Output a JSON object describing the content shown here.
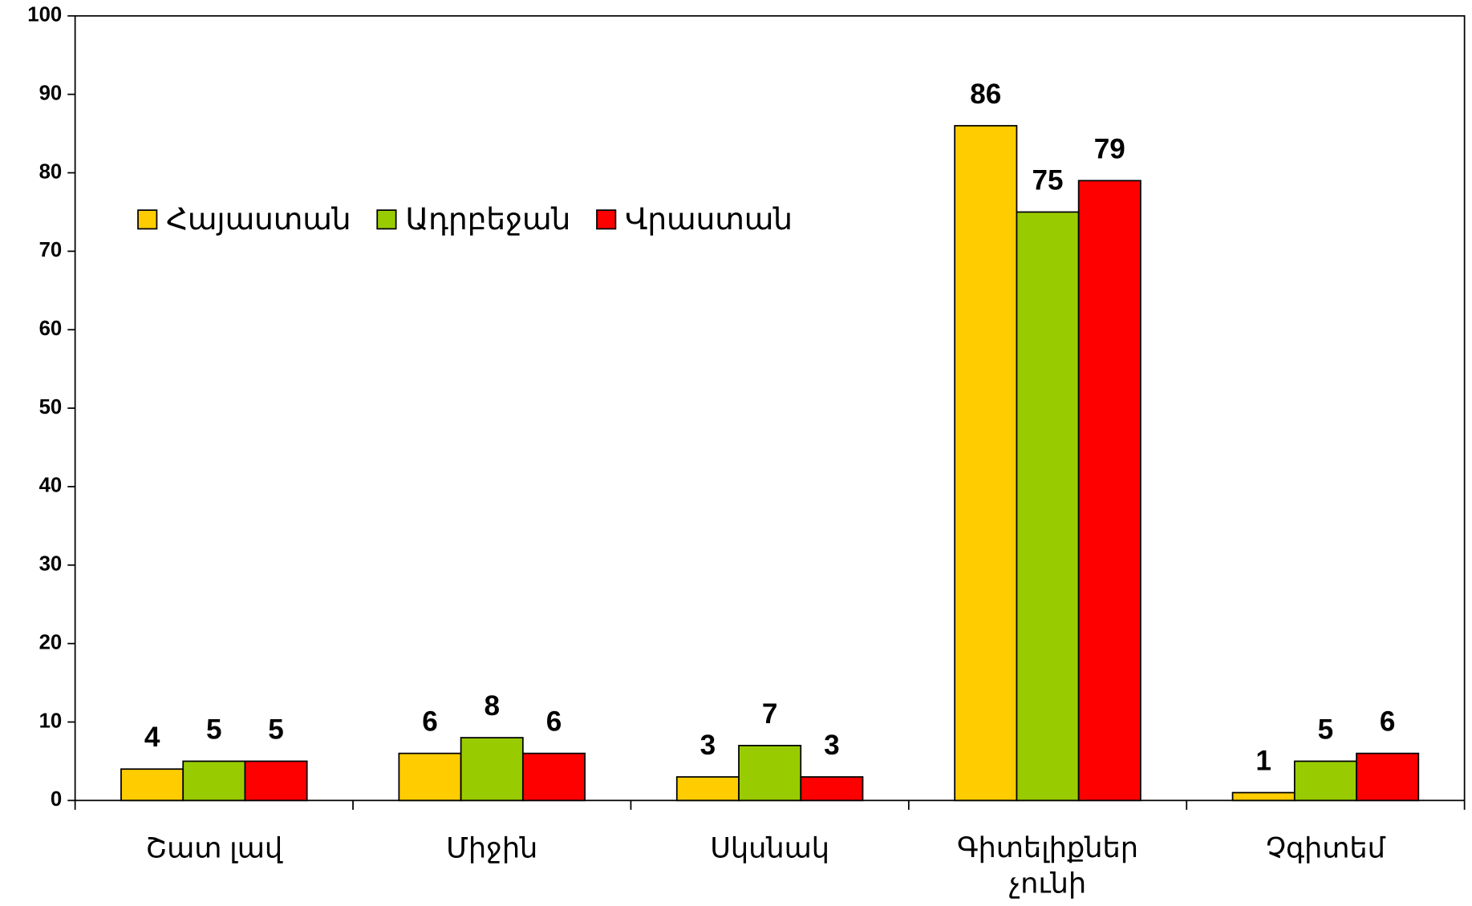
{
  "chart_data": {
    "type": "bar",
    "categories": [
      "Շատ լավ",
      "Միջին",
      "Սկսնակ",
      "Գիտելիքներ չունի",
      "Չգիտեմ"
    ],
    "series": [
      {
        "name": "Հայաստան",
        "color": "#ffcc00",
        "values": [
          4,
          6,
          3,
          86,
          1
        ]
      },
      {
        "name": "Ադրբեջան",
        "color": "#99cc00",
        "values": [
          5,
          8,
          7,
          75,
          5
        ]
      },
      {
        "name": "Վրաստան",
        "color": "#ff0000",
        "values": [
          5,
          6,
          3,
          79,
          6
        ]
      }
    ],
    "ylim": [
      0,
      100
    ],
    "yticks": [
      0,
      10,
      20,
      30,
      40,
      50,
      60,
      70,
      80,
      90,
      100
    ],
    "legend": "top-left"
  }
}
